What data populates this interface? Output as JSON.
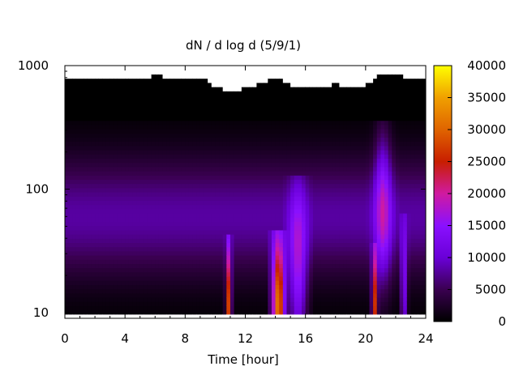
{
  "chart_data": {
    "type": "heatmap",
    "title": "dN / d log d (5/9/1)",
    "xlabel": "Time [hour]",
    "ylabel": "",
    "xlim": [
      0,
      24
    ],
    "ylim": [
      9,
      1000
    ],
    "y_scale": "log",
    "x_ticks": [
      "0",
      "4",
      "8",
      "12",
      "16",
      "20",
      "24"
    ],
    "y_ticks": [
      "10",
      "100",
      "1000"
    ],
    "colorbar": {
      "range": [
        0,
        40000
      ],
      "ticks": [
        "0",
        "5000",
        "10000",
        "15000",
        "20000",
        "25000",
        "30000",
        "35000",
        "40000"
      ],
      "palette": [
        "#000000",
        "#3a0050",
        "#6a00d8",
        "#8a10ff",
        "#d01aa0",
        "#c81e00",
        "#e06400",
        "#f0a000",
        "#ffff00"
      ]
    },
    "upper_detection_limit_d_by_hour": [
      [
        0,
        800
      ],
      [
        1,
        760
      ],
      [
        2,
        820
      ],
      [
        3,
        780
      ],
      [
        4,
        800
      ],
      [
        5,
        760
      ],
      [
        6,
        850
      ],
      [
        7,
        790
      ],
      [
        8,
        760
      ],
      [
        9,
        820
      ],
      [
        10,
        680
      ],
      [
        11,
        620
      ],
      [
        12,
        660
      ],
      [
        13,
        720
      ],
      [
        14,
        800
      ],
      [
        15,
        700
      ],
      [
        16,
        680
      ],
      [
        17,
        660
      ],
      [
        18,
        720
      ],
      [
        19,
        650
      ],
      [
        20,
        700
      ],
      [
        21,
        850
      ],
      [
        22,
        860
      ],
      [
        23,
        780
      ],
      [
        24,
        760
      ]
    ],
    "features": [
      {
        "hours": [
          0,
          24
        ],
        "d_range": [
          9.5,
          350
        ],
        "peak_d": 60,
        "level": 8000
      },
      {
        "hours": [
          10.7,
          11.1
        ],
        "d_range": [
          9.5,
          40
        ],
        "peak_d": 11,
        "level": 27000
      },
      {
        "hours": [
          13.7,
          14.7
        ],
        "d_range": [
          9.5,
          45
        ],
        "peak_d": 11,
        "level": 31000
      },
      {
        "hours": [
          14.8,
          16.2
        ],
        "d_range": [
          9.5,
          120
        ],
        "peak_d": 20,
        "level": 13000
      },
      {
        "hours": [
          20.4,
          20.8
        ],
        "d_range": [
          9.5,
          35
        ],
        "peak_d": 11,
        "level": 25000
      },
      {
        "hours": [
          20.5,
          21.8
        ],
        "d_range": [
          9.5,
          350
        ],
        "peak_d": 70,
        "level": 12000
      },
      {
        "hours": [
          22.3,
          22.8
        ],
        "d_range": [
          9.5,
          60
        ],
        "peak_d": 14,
        "level": 11000
      }
    ]
  }
}
